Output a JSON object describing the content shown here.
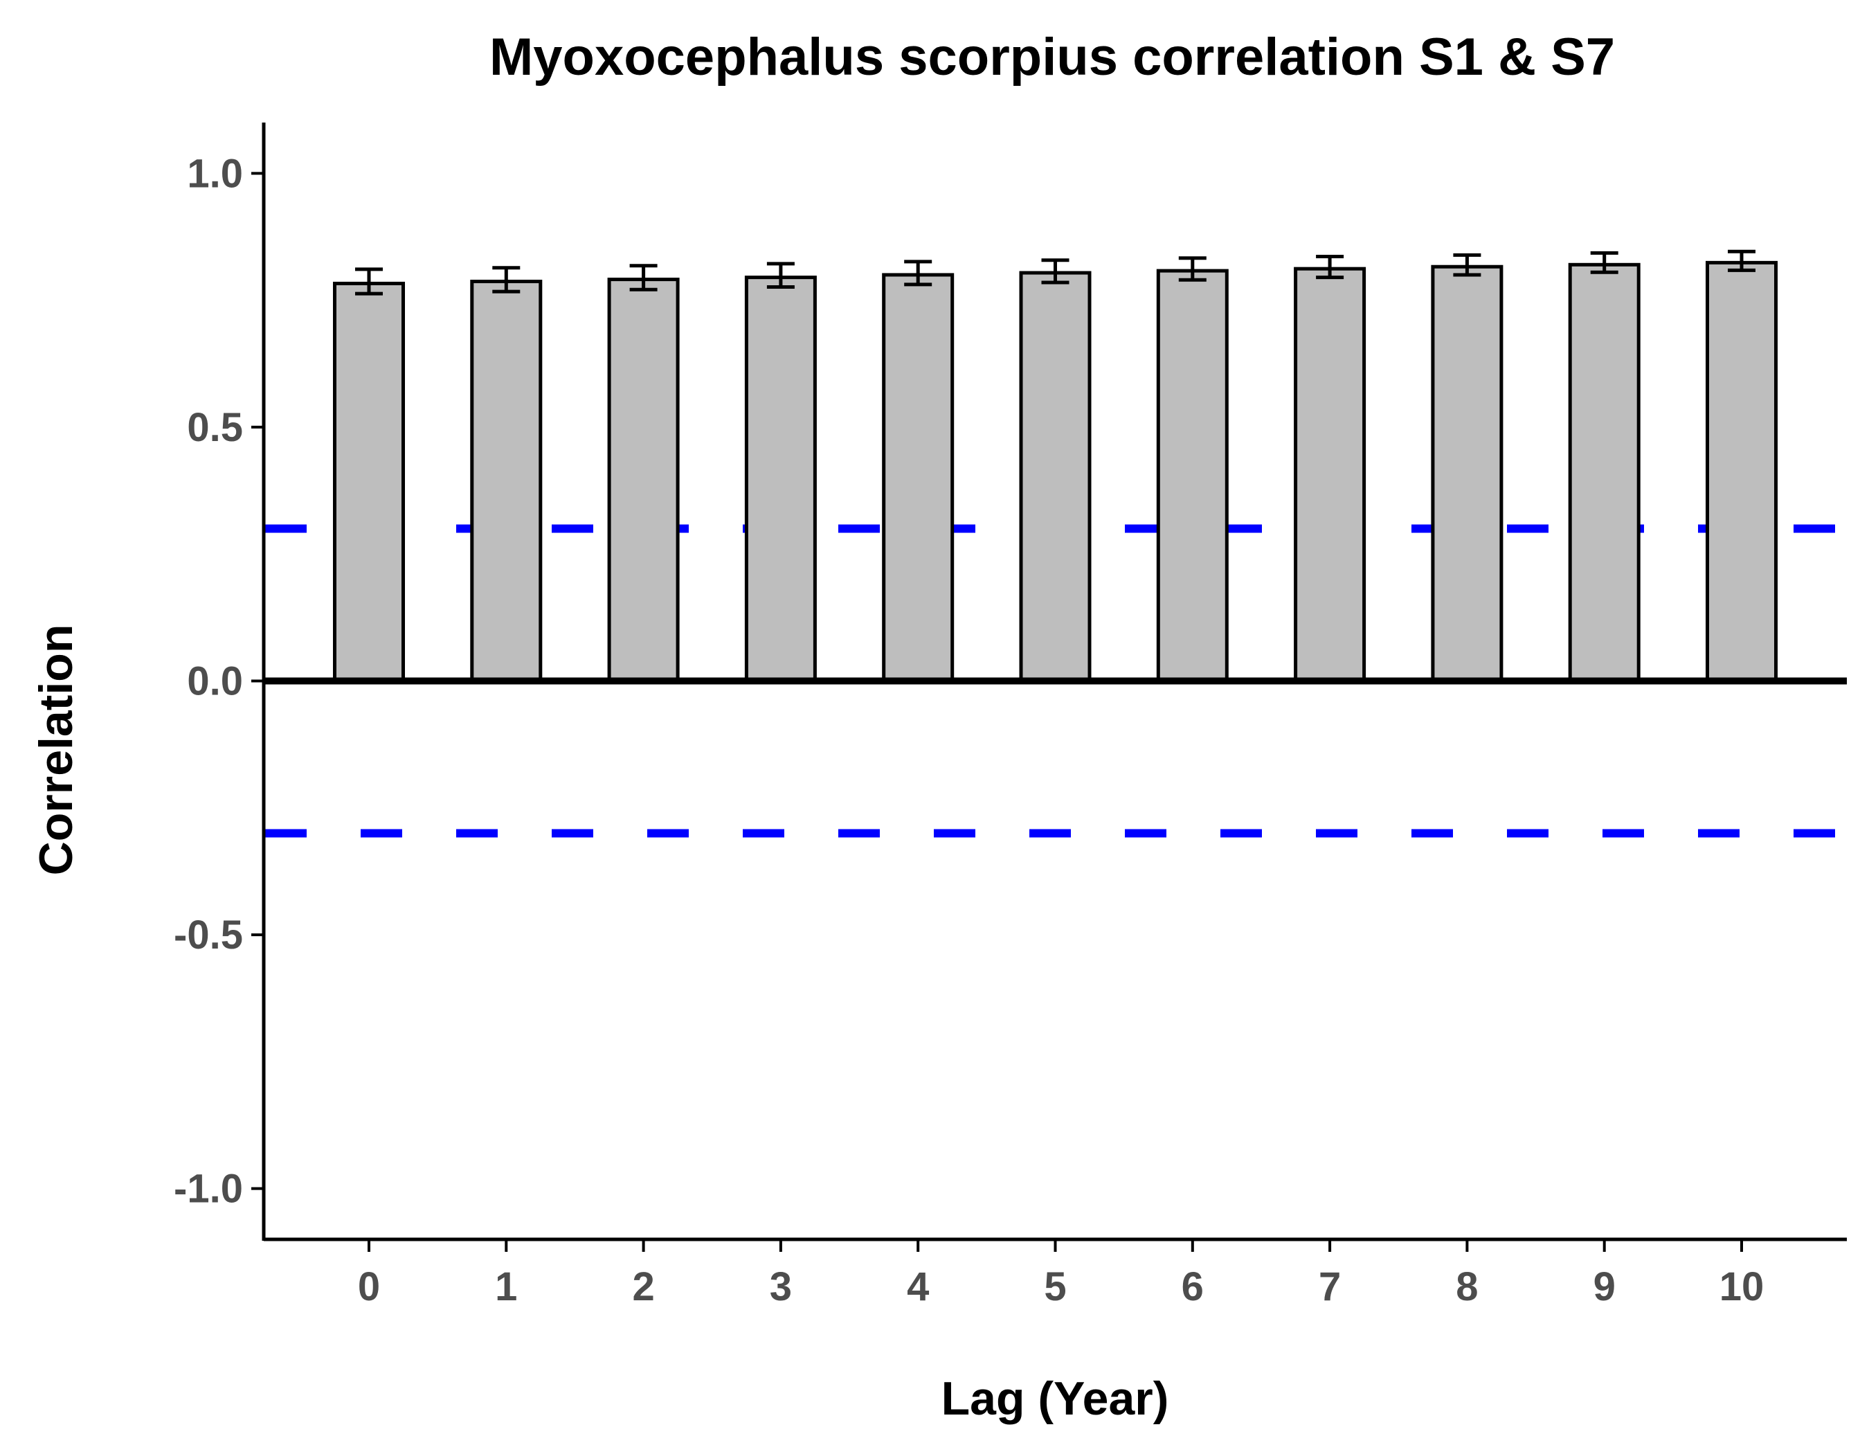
{
  "chart_data": {
    "type": "bar",
    "title": "Myoxocephalus scorpius correlation S1 & S7",
    "xlabel": "Lag (Year)",
    "ylabel": "Correlation",
    "categories": [
      "0",
      "1",
      "2",
      "3",
      "4",
      "5",
      "6",
      "7",
      "8",
      "9",
      "10"
    ],
    "values": [
      0.783,
      0.787,
      0.791,
      0.795,
      0.8,
      0.804,
      0.808,
      0.812,
      0.816,
      0.82,
      0.824
    ],
    "error_low": [
      0.763,
      0.767,
      0.771,
      0.776,
      0.781,
      0.785,
      0.79,
      0.795,
      0.8,
      0.805,
      0.809
    ],
    "error_high": [
      0.811,
      0.814,
      0.818,
      0.822,
      0.826,
      0.829,
      0.833,
      0.836,
      0.839,
      0.843,
      0.846
    ],
    "ylim": [
      -1.1,
      1.1
    ],
    "yticks": [
      1.0,
      0.5,
      0.0,
      -0.5,
      -1.0
    ],
    "ytick_labels": [
      "1.0",
      "0.5",
      "0.0",
      "-0.5",
      "-1.0"
    ],
    "reference_lines": [
      {
        "y": 0.3,
        "style": "dashed",
        "color": "#0000ff"
      },
      {
        "y": -0.3,
        "style": "dashed",
        "color": "#0000ff"
      },
      {
        "y": 0.0,
        "style": "solid",
        "color": "#000000"
      }
    ],
    "bar_fill": "#bebebe",
    "grid": false,
    "legend": "none"
  }
}
